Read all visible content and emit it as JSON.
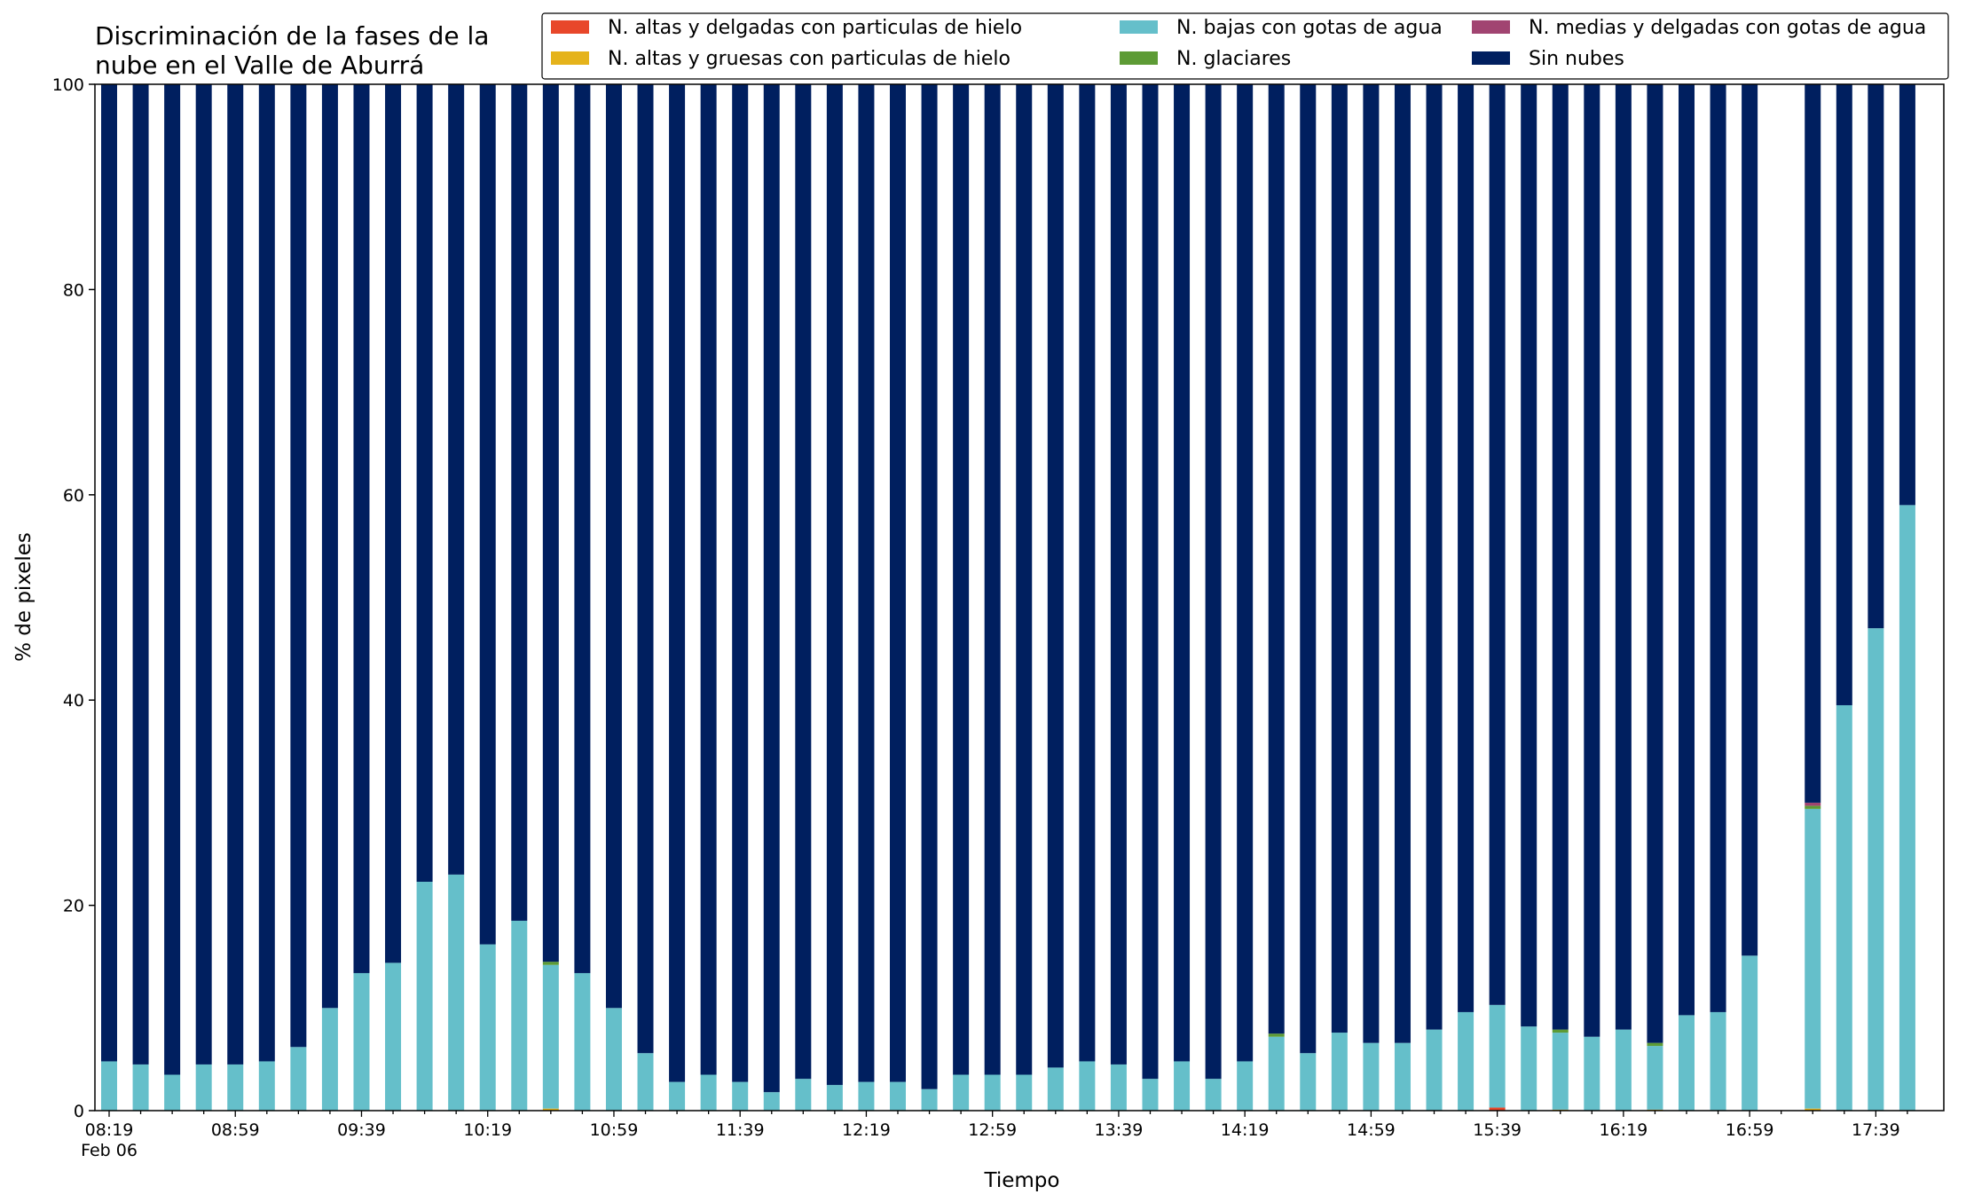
{
  "chart_data": {
    "type": "bar",
    "stacked": true,
    "title_lines": [
      "Discriminación de la fases de la",
      "nube en el Valle de Aburrá"
    ],
    "xlabel": "Tiempo",
    "ylabel": "% de pixeles",
    "ylim": [
      0,
      100
    ],
    "yticks": [
      0,
      20,
      40,
      60,
      80,
      100
    ],
    "x_tick_labels": [
      "08:19",
      "08:59",
      "09:39",
      "10:19",
      "10:59",
      "11:39",
      "12:19",
      "12:59",
      "13:39",
      "14:19",
      "14:59",
      "15:39",
      "16:19",
      "16:59",
      "17:39"
    ],
    "x_date_label": "Feb 06",
    "legend_placement": "top-right",
    "x": [
      "08:19",
      "08:29",
      "08:39",
      "08:49",
      "08:59",
      "09:09",
      "09:19",
      "09:29",
      "09:39",
      "09:49",
      "09:59",
      "10:09",
      "10:19",
      "10:29",
      "10:39",
      "10:49",
      "10:59",
      "11:09",
      "11:19",
      "11:29",
      "11:39",
      "11:49",
      "11:59",
      "12:09",
      "12:19",
      "12:29",
      "12:39",
      "12:49",
      "12:59",
      "13:09",
      "13:19",
      "13:29",
      "13:39",
      "13:49",
      "13:59",
      "14:09",
      "14:19",
      "14:29",
      "14:39",
      "14:49",
      "14:59",
      "15:09",
      "15:19",
      "15:29",
      "15:39",
      "15:49",
      "15:59",
      "16:09",
      "16:19",
      "16:29",
      "16:39",
      "16:49",
      "16:59",
      "17:09",
      "17:19",
      "17:29",
      "17:39",
      "17:49"
    ],
    "series": [
      {
        "name": "N. altas y delgadas con particulas de hielo",
        "color": "#e8472a",
        "values": [
          0,
          0,
          0,
          0,
          0,
          0,
          0,
          0,
          0,
          0,
          0,
          0,
          0,
          0,
          0,
          0,
          0,
          0,
          0,
          0,
          0,
          0,
          0,
          0,
          0,
          0,
          0,
          0,
          0,
          0,
          0,
          0,
          0,
          0,
          0,
          0,
          0,
          0,
          0,
          0,
          0,
          0,
          0,
          0,
          0.3,
          0,
          0,
          0,
          0,
          0,
          0,
          0,
          0,
          0,
          0,
          0,
          0,
          0
        ]
      },
      {
        "name": "N. altas y gruesas con particulas de hielo",
        "color": "#e5b31b",
        "values": [
          0,
          0,
          0,
          0,
          0,
          0,
          0,
          0,
          0,
          0,
          0,
          0,
          0,
          0,
          0.2,
          0,
          0,
          0,
          0,
          0,
          0,
          0,
          0,
          0,
          0,
          0,
          0,
          0,
          0,
          0,
          0,
          0,
          0,
          0,
          0,
          0,
          0,
          0,
          0,
          0,
          0,
          0,
          0,
          0,
          0,
          0,
          0.1,
          0,
          0,
          0.1,
          0,
          0,
          0,
          0,
          0.2,
          0,
          0,
          0
        ]
      },
      {
        "name": "N. bajas con gotas de agua",
        "color": "#65bfca",
        "values": [
          4.8,
          4.5,
          3.5,
          4.5,
          4.5,
          4.8,
          6.2,
          10.0,
          13.4,
          14.4,
          22.3,
          23.0,
          16.2,
          18.5,
          14.0,
          13.4,
          10.0,
          5.6,
          2.8,
          3.5,
          2.8,
          1.8,
          3.1,
          2.5,
          2.8,
          2.8,
          2.1,
          3.5,
          3.5,
          3.5,
          4.2,
          4.8,
          4.5,
          3.1,
          4.8,
          3.1,
          4.8,
          7.2,
          5.6,
          7.6,
          6.6,
          6.6,
          7.9,
          9.6,
          10.0,
          8.2,
          7.5,
          7.2,
          7.9,
          6.2,
          9.3,
          9.6,
          15.1,
          0,
          29.2,
          39.5,
          47.0,
          59.0
        ]
      },
      {
        "name": "N. glaciares",
        "color": "#5d9b35",
        "values": [
          0,
          0,
          0,
          0,
          0,
          0,
          0,
          0,
          0,
          0,
          0,
          0,
          0,
          0,
          0.3,
          0,
          0,
          0,
          0,
          0,
          0,
          0,
          0,
          0,
          0,
          0,
          0,
          0,
          0,
          0,
          0,
          0,
          0,
          0,
          0,
          0,
          0,
          0.3,
          0,
          0,
          0,
          0,
          0,
          0,
          0,
          0,
          0.3,
          0,
          0,
          0.3,
          0,
          0,
          0,
          0,
          0.3,
          0,
          0,
          0
        ]
      },
      {
        "name": "N. medias y delgadas con gotas de agua",
        "color": "#a14471",
        "values": [
          0,
          0,
          0,
          0,
          0,
          0,
          0,
          0,
          0,
          0,
          0,
          0,
          0,
          0,
          0,
          0,
          0,
          0,
          0,
          0,
          0,
          0,
          0,
          0,
          0,
          0,
          0,
          0,
          0,
          0,
          0,
          0,
          0,
          0,
          0,
          0,
          0,
          0,
          0,
          0,
          0,
          0,
          0,
          0,
          0,
          0,
          0,
          0,
          0,
          0,
          0,
          0,
          0,
          0,
          0.3,
          0,
          0,
          0
        ]
      },
      {
        "name": "Sin nubes",
        "color": "#001f5f",
        "values": [
          95.2,
          95.5,
          96.5,
          95.5,
          95.5,
          95.2,
          93.8,
          90.0,
          86.6,
          85.6,
          77.7,
          77.0,
          83.8,
          81.5,
          85.5,
          86.6,
          90.0,
          94.4,
          97.2,
          96.5,
          97.2,
          98.2,
          96.9,
          97.5,
          97.2,
          97.2,
          97.9,
          96.5,
          96.5,
          96.5,
          95.8,
          95.2,
          95.5,
          96.9,
          95.2,
          96.9,
          95.2,
          92.5,
          94.4,
          92.4,
          93.4,
          93.4,
          92.1,
          90.4,
          89.7,
          91.8,
          92.1,
          92.8,
          92.1,
          93.4,
          90.7,
          90.4,
          84.9,
          0,
          70.0,
          60.5,
          53.0,
          41.0
        ]
      }
    ]
  }
}
